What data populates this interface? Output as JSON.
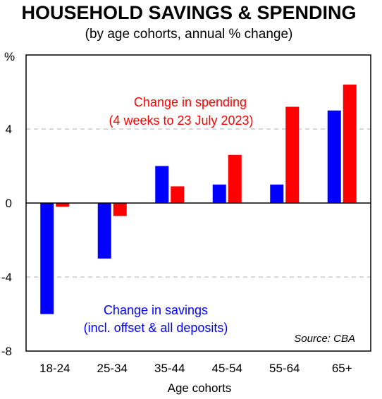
{
  "chart_data": {
    "type": "bar",
    "title": "HOUSEHOLD SAVINGS & SPENDING",
    "subtitle": "(by age cohorts, annual % change)",
    "xlabel": "Age cohorts",
    "ylabel": "%",
    "categories": [
      "18-24",
      "25-34",
      "35-44",
      "45-54",
      "55-64",
      "65+"
    ],
    "series": [
      {
        "name": "Change in savings",
        "color": "#0000ff",
        "values": [
          -6.0,
          -3.0,
          2.0,
          1.0,
          1.0,
          5.0
        ]
      },
      {
        "name": "Change in spending",
        "color": "#ff0000",
        "values": [
          -0.2,
          -0.7,
          0.9,
          2.6,
          5.2,
          6.4
        ]
      }
    ],
    "ylim": [
      -8,
      8
    ],
    "yticks": [
      -8,
      -4,
      0,
      4
    ],
    "grid": "horizontal dashed",
    "annotations": {
      "spending_line1": "Change in spending",
      "spending_line2": "(4 weeks to 23 July 2023)",
      "savings_line1": "Change in savings",
      "savings_line2": "(incl. offset & all deposits)"
    },
    "source": "Source: CBA"
  }
}
